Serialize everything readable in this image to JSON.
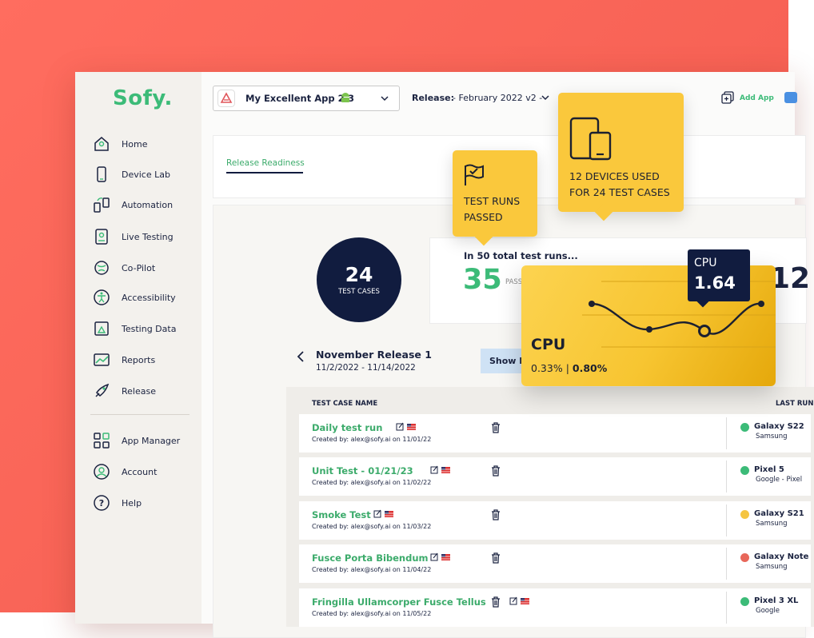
{
  "sidebar": {
    "logo": "Sofy.",
    "nav": [
      "Home",
      "Device Lab",
      "Automation",
      "Live Testing",
      "Co-Pilot",
      "Accessibility",
      "Testing Data",
      "Reports",
      "Release"
    ],
    "nav_bottom": [
      "App Manager",
      "Account",
      "Help"
    ]
  },
  "topbar": {
    "app": "My Excellent App 2.3",
    "release_label": "Release:",
    "release": "- February 2022 v2 -",
    "add_app": "Add App"
  },
  "tab": "Release Readiness",
  "summary": {
    "count": "24",
    "count_label": "TEST CASES",
    "runs_text": "In 50 total test runs...",
    "passed": "35",
    "passed_label": "PASSED",
    "side_number": "12"
  },
  "release_nav": {
    "name": "November Release 1",
    "dates": "11/2/2022 - 11/14/2022",
    "button": "Show More"
  },
  "table": {
    "headers": [
      "TEST CASE NAME",
      "LAST RUN"
    ],
    "rows": [
      {
        "name": "Daily test run",
        "created": "Created by: alex@sofy.ai on 11/01/22",
        "device": "Galaxy S22",
        "maker": "Samsung",
        "status_color": "#3cbb78"
      },
      {
        "name": "Unit Test - 01/21/23",
        "created": "Created by: alex@sofy.ai on 11/02/22",
        "device": "Pixel 5",
        "maker": "Google - Pixel",
        "status_color": "#3cbb78"
      },
      {
        "name": "Smoke Test",
        "created": "Created by: alex@sofy.ai on 11/03/22",
        "device": "Galaxy S21",
        "maker": "Samsung",
        "status_color": "#f5c542"
      },
      {
        "name": "Fusce Porta Bibendum",
        "created": "Created by: alex@sofy.ai on 11/04/22",
        "device": "Galaxy Note",
        "maker": "Samsung",
        "status_color": "#e8675a"
      },
      {
        "name": "Fringilla Ullamcorper Fusce Tellus",
        "created": "Created by: alex@sofy.ai on 11/05/22",
        "device": "Pixel 3 XL",
        "maker": "Google",
        "status_color": "#3cbb78"
      }
    ]
  },
  "callouts": {
    "runs": [
      "TEST RUNS",
      "PASSED"
    ],
    "devices": [
      "12 DEVICES USED",
      "FOR 24 TEST CASES"
    ]
  },
  "cpu": {
    "tooltip_label": "CPU",
    "tooltip_value": "1.64",
    "title": "CPU",
    "low": "0.33%",
    "high": "0.80%"
  }
}
